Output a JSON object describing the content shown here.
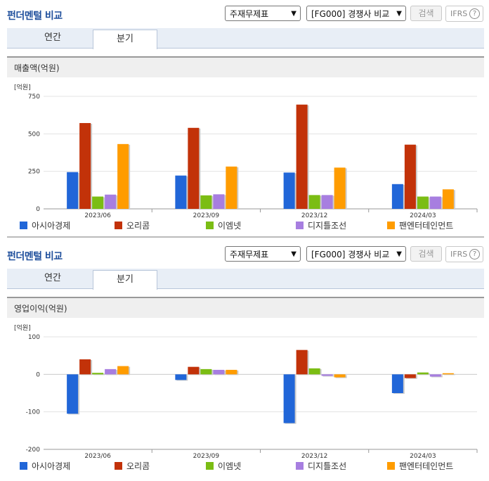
{
  "header": {
    "title": "펀더멘털 비교",
    "select1": "주재무제표",
    "select2": "[FG000] 경쟁사 비교",
    "search_label": "검색",
    "ifrs_label": "IFRS",
    "help_glyph": "?"
  },
  "tabs": [
    "연간",
    "분기"
  ],
  "legend": [
    {
      "name": "아시아경제",
      "color": "#2166d8"
    },
    {
      "name": "오리콤",
      "color": "#c23209"
    },
    {
      "name": "이엠넷",
      "color": "#7bbd14"
    },
    {
      "name": "디지틀조선",
      "color": "#a77ee0"
    },
    {
      "name": "팬엔터테인먼트",
      "color": "#ff9c00"
    }
  ],
  "chart_data": [
    {
      "type": "bar",
      "title": "매출액(억원)",
      "unit_label": "[억원]",
      "categories": [
        "2023/06",
        "2023/09",
        "2023/12",
        "2024/03"
      ],
      "ylim": [
        0,
        750
      ],
      "yticks": [
        0,
        250,
        500,
        750
      ],
      "grid": true,
      "legend_position": "bottom",
      "series": [
        {
          "name": "아시아경제",
          "values": [
            245,
            222,
            242,
            165
          ]
        },
        {
          "name": "오리콤",
          "values": [
            572,
            540,
            695,
            428
          ]
        },
        {
          "name": "이엠넷",
          "values": [
            82,
            90,
            92,
            82
          ]
        },
        {
          "name": "디지틀조선",
          "values": [
            95,
            97,
            92,
            82
          ]
        },
        {
          "name": "팬엔터테인먼트",
          "values": [
            432,
            282,
            275,
            130
          ]
        }
      ]
    },
    {
      "type": "bar",
      "title": "영업이익(억원)",
      "unit_label": "[억원]",
      "categories": [
        "2023/06",
        "2023/09",
        "2023/12",
        "2024/03"
      ],
      "ylim": [
        -200,
        100
      ],
      "yticks": [
        -200,
        -100,
        0,
        100
      ],
      "grid": true,
      "legend_position": "bottom",
      "series": [
        {
          "name": "아시아경제",
          "values": [
            -105,
            -15,
            -130,
            -50
          ]
        },
        {
          "name": "오리콤",
          "values": [
            40,
            20,
            65,
            -10
          ]
        },
        {
          "name": "이엠넷",
          "values": [
            4,
            14,
            16,
            5
          ]
        },
        {
          "name": "디지틀조선",
          "values": [
            14,
            12,
            -4,
            -6
          ]
        },
        {
          "name": "팬엔터테인먼트",
          "values": [
            22,
            12,
            -8,
            3
          ]
        }
      ]
    }
  ]
}
